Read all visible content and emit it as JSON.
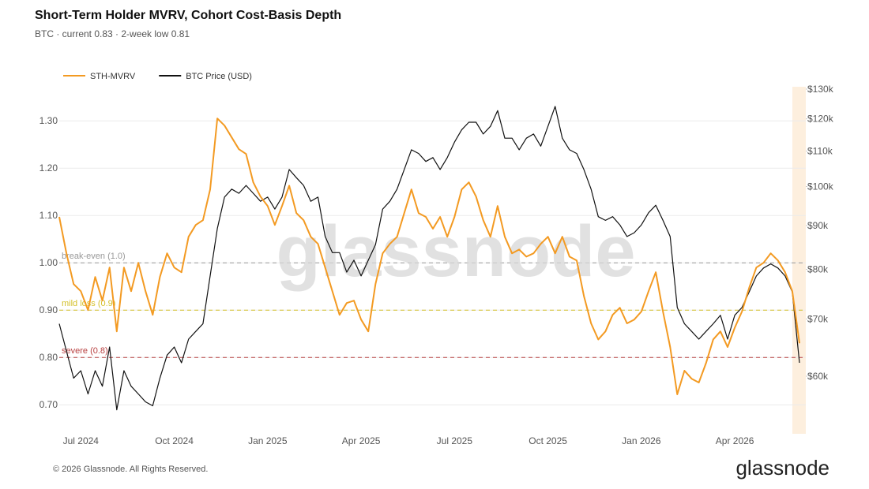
{
  "chart_data": {
    "type": "line",
    "title": "Short-Term Holder MVRV, Cohort Cost-Basis Depth",
    "subtitle": "BTC · current 0.83 · 2-week low 0.81",
    "watermark": "glassnode",
    "footer": "© 2026 Glassnode. All Rights Reserved.",
    "logo": "glassnode",
    "categories": [
      null,
      null,
      null,
      "Jul 2024",
      null,
      null,
      null,
      null,
      null,
      null,
      null,
      null,
      null,
      null,
      null,
      null,
      "Oct 2024",
      null,
      null,
      null,
      null,
      null,
      null,
      null,
      null,
      null,
      null,
      null,
      null,
      "Jan 2025",
      null,
      null,
      null,
      null,
      null,
      null,
      null,
      null,
      null,
      null,
      null,
      null,
      "Apr 2025",
      null,
      null,
      null,
      null,
      null,
      null,
      null,
      null,
      null,
      null,
      null,
      null,
      "Jul 2025",
      null,
      null,
      null,
      null,
      null,
      null,
      null,
      null,
      null,
      null,
      null,
      null,
      "Oct 2025",
      null,
      null,
      null,
      null,
      null,
      null,
      null,
      null,
      null,
      null,
      null,
      null,
      "Jan 2026",
      null,
      null,
      null,
      null,
      null,
      null,
      null,
      null,
      null,
      null,
      null,
      null,
      "Apr 2026",
      null,
      null,
      null,
      null,
      null,
      null,
      null,
      null,
      null
    ],
    "series": [
      {
        "name": "STH-MVRV",
        "color": "#f39a22",
        "axis": "y",
        "values": [
          1.097,
          1.02,
          0.955,
          0.94,
          0.9,
          0.97,
          0.92,
          0.99,
          0.855,
          0.99,
          0.94,
          1.0,
          0.94,
          0.89,
          0.97,
          1.02,
          0.99,
          0.98,
          1.055,
          1.08,
          1.09,
          1.155,
          1.305,
          1.29,
          1.265,
          1.24,
          1.23,
          1.17,
          1.14,
          1.12,
          1.08,
          1.12,
          1.163,
          1.105,
          1.09,
          1.055,
          1.04,
          0.99,
          0.94,
          0.89,
          0.915,
          0.92,
          0.88,
          0.855,
          0.955,
          1.02,
          1.04,
          1.055,
          1.105,
          1.155,
          1.105,
          1.097,
          1.072,
          1.097,
          1.055,
          1.097,
          1.155,
          1.17,
          1.14,
          1.09,
          1.055,
          1.12,
          1.055,
          1.02,
          1.028,
          1.013,
          1.02,
          1.04,
          1.055,
          1.02,
          1.055,
          1.013,
          1.005,
          0.93,
          0.872,
          0.838,
          0.855,
          0.89,
          0.905,
          0.872,
          0.88,
          0.897,
          0.94,
          0.98,
          0.897,
          0.822,
          0.722,
          0.772,
          0.755,
          0.747,
          0.788,
          0.838,
          0.855,
          0.822,
          0.863,
          0.897,
          0.947,
          0.99,
          1.0,
          1.02,
          1.005,
          0.98,
          0.94,
          0.83
        ]
      },
      {
        "name": "BTC Price (USD)",
        "color": "#111111",
        "axis": "y2",
        "values": [
          69100,
          64200,
          59700,
          60900,
          57200,
          60900,
          58400,
          64900,
          54800,
          60900,
          58400,
          57200,
          56000,
          55400,
          59700,
          63500,
          64900,
          62200,
          66300,
          67700,
          69100,
          78600,
          89300,
          97200,
          99300,
          98200,
          100300,
          98200,
          96100,
          97200,
          94100,
          97200,
          104700,
          102400,
          100300,
          96100,
          97200,
          87400,
          83700,
          83700,
          79400,
          82000,
          78600,
          82000,
          85500,
          94100,
          96100,
          99300,
          104700,
          110400,
          109300,
          107000,
          108100,
          104700,
          108100,
          112700,
          116500,
          118900,
          118900,
          115200,
          117600,
          122700,
          113900,
          113900,
          110400,
          113900,
          115200,
          111500,
          117600,
          124100,
          113900,
          110400,
          109300,
          104700,
          99300,
          92200,
          91300,
          92200,
          90200,
          87400,
          88300,
          90200,
          93200,
          95100,
          91300,
          87400,
          72200,
          69100,
          67700,
          66300,
          67700,
          69100,
          70700,
          66300,
          70700,
          72200,
          75300,
          78600,
          80300,
          81200,
          80300,
          78600,
          75300,
          62200
        ]
      }
    ],
    "ylim": [
      0.642,
      1.367
    ],
    "yticks": [
      {
        "value": 0.7,
        "label": "0.70"
      },
      {
        "value": 0.8,
        "label": "0.80"
      },
      {
        "value": 0.9,
        "label": "0.90"
      },
      {
        "value": 1.0,
        "label": "1.00"
      },
      {
        "value": 1.1,
        "label": "1.10"
      },
      {
        "value": 1.2,
        "label": "1.20"
      },
      {
        "value": 1.3,
        "label": "1.30"
      }
    ],
    "y2lim": [
      51600,
      130000
    ],
    "y2scale": "log",
    "y2ticks": [
      {
        "value": 60000,
        "label": "$60k"
      },
      {
        "value": 70000,
        "label": "$70k"
      },
      {
        "value": 80000,
        "label": "$80k"
      },
      {
        "value": 90000,
        "label": "$90k"
      },
      {
        "value": 100000,
        "label": "$100k"
      },
      {
        "value": 110000,
        "label": "$110k"
      },
      {
        "value": 120000,
        "label": "$120k"
      },
      {
        "value": 130000,
        "label": "$130k"
      }
    ],
    "grid": true,
    "legend": "top-left",
    "reference_lines": [
      {
        "value": 1.0,
        "label": "break-even (1.0)",
        "color": "#999999"
      },
      {
        "value": 0.9,
        "label": "mild loss (0.9)",
        "color": "#d4c02a"
      },
      {
        "value": 0.8,
        "label": "severe (0.8)",
        "color": "#b84040"
      }
    ]
  }
}
